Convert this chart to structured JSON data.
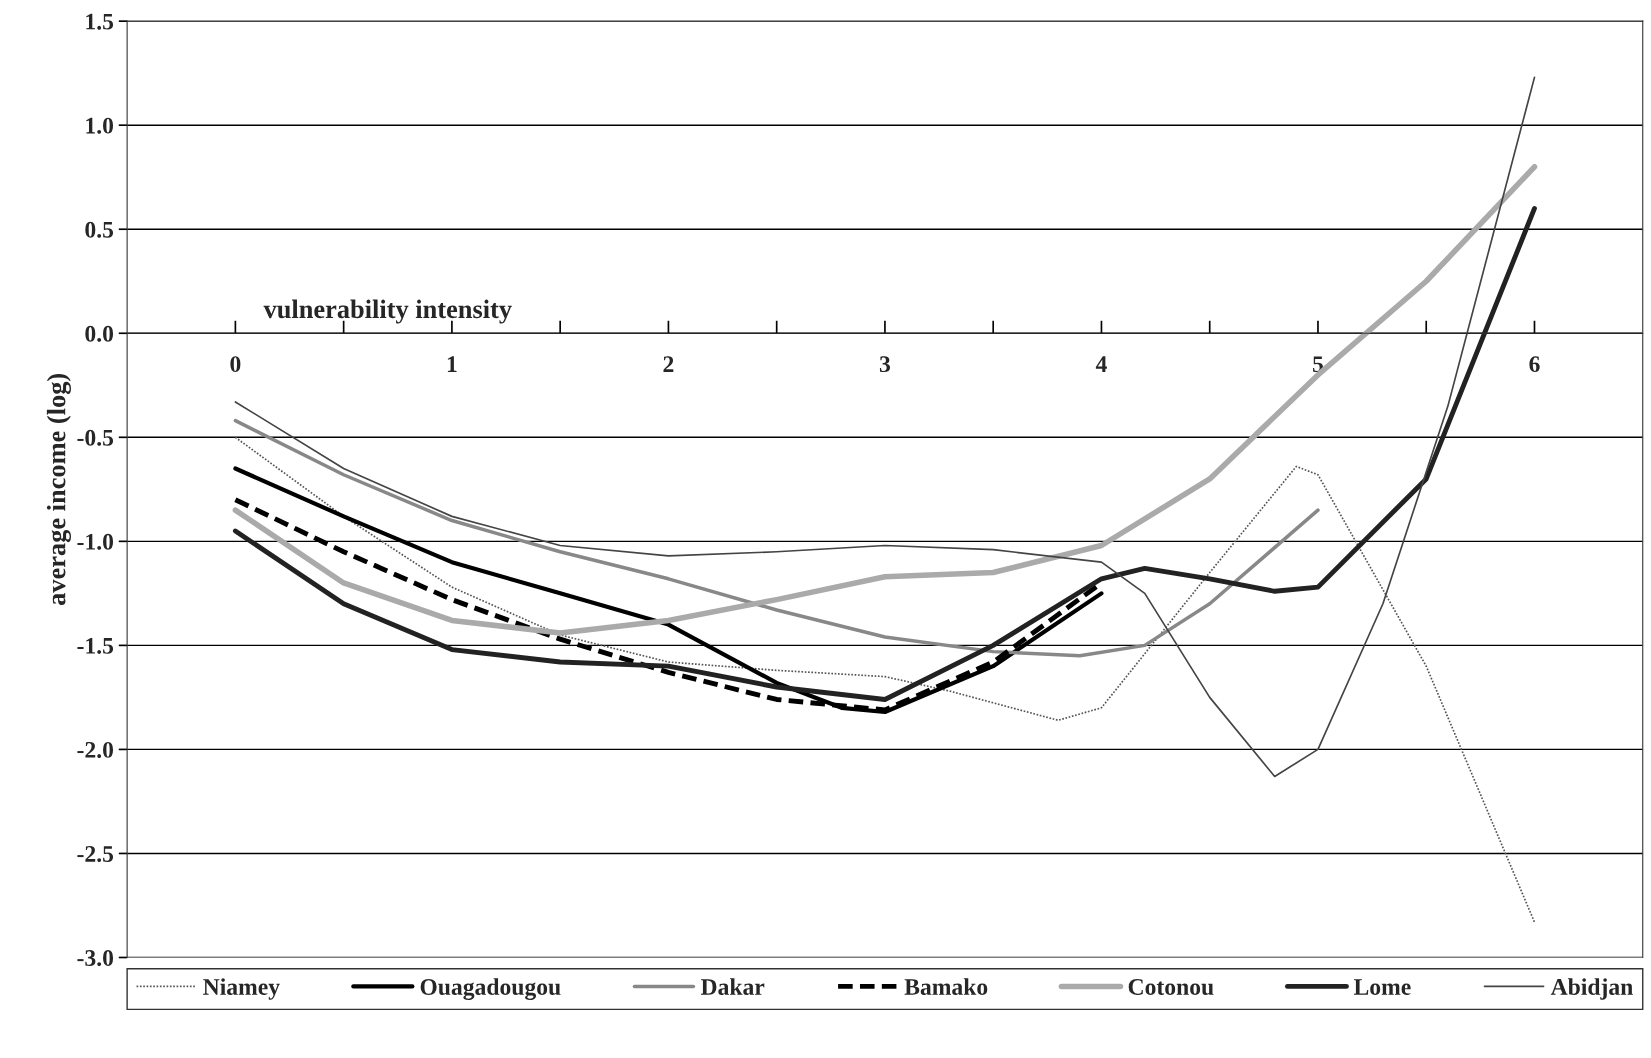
{
  "chart_data": {
    "type": "line",
    "xlabel": "vulnerability intensity",
    "ylabel": "average income (log)",
    "xlim": [
      -0.5,
      6.5
    ],
    "ylim": [
      -3.0,
      1.5
    ],
    "xticks": [
      0,
      {
        "value": 0.5,
        "label": null
      },
      1,
      {
        "value": 1.5,
        "label": null
      },
      2,
      {
        "value": 2.5,
        "label": null
      },
      3,
      {
        "value": 3.5,
        "label": null
      },
      4,
      {
        "value": 4.5,
        "label": null
      },
      5,
      {
        "value": 5.5,
        "label": null
      },
      6
    ],
    "yticks": [
      {
        "value": -3,
        "label": "-3.0"
      },
      -2.5,
      {
        "value": -2,
        "label": "-2.0"
      },
      -1.5,
      {
        "value": -1,
        "label": "-1.0"
      },
      -0.5,
      {
        "value": 0,
        "label": "0.0"
      },
      0.5,
      {
        "value": 1,
        "label": "1.0"
      },
      1.5
    ],
    "grid": "y",
    "legend": "bottom",
    "series": [
      {
        "name": "Niamey",
        "color": "#555555",
        "line_style": "dotted",
        "x": [
          0,
          0.5,
          1,
          1.5,
          2,
          2.5,
          3,
          3.3,
          3.8,
          4,
          4.5,
          4.9,
          5,
          5.5,
          6
        ],
        "values": [
          -0.5,
          -0.88,
          -1.22,
          -1.45,
          -1.58,
          -1.62,
          -1.65,
          -1.72,
          -1.86,
          -1.8,
          -1.15,
          -0.64,
          -0.68,
          -1.6,
          -2.83
        ]
      },
      {
        "name": "Ouagadougou",
        "color": "#000000",
        "line_style": "solid",
        "x": [
          0,
          0.5,
          1,
          1.5,
          2,
          2.5,
          2.8,
          3,
          3.5,
          4
        ],
        "values": [
          -0.65,
          -0.88,
          -1.1,
          -1.25,
          -1.4,
          -1.68,
          -1.8,
          -1.82,
          -1.6,
          -1.25
        ]
      },
      {
        "name": "Dakar",
        "color": "#888888",
        "line_style": "solid",
        "x": [
          0,
          0.5,
          1,
          1.5,
          2,
          2.5,
          3,
          3.5,
          3.9,
          4.2,
          4.5,
          5
        ],
        "values": [
          -0.42,
          -0.68,
          -0.9,
          -1.05,
          -1.18,
          -1.33,
          -1.46,
          -1.53,
          -1.55,
          -1.5,
          -1.3,
          -0.85
        ]
      },
      {
        "name": "Bamako",
        "color": "#000000",
        "line_style": "dashed",
        "x": [
          0,
          0.5,
          1,
          1.5,
          2,
          2.5,
          3,
          3.5,
          4
        ],
        "values": [
          -0.8,
          -1.05,
          -1.28,
          -1.47,
          -1.63,
          -1.76,
          -1.81,
          -1.58,
          -1.2
        ]
      },
      {
        "name": "Cotonou",
        "color": "#aaaaaa",
        "line_style": "solid",
        "x": [
          0,
          0.5,
          1,
          1.5,
          2,
          2.5,
          3,
          3.5,
          4,
          4.5,
          5,
          5.5,
          6
        ],
        "values": [
          -0.85,
          -1.2,
          -1.38,
          -1.44,
          -1.38,
          -1.28,
          -1.17,
          -1.15,
          -1.02,
          -0.7,
          -0.2,
          0.25,
          0.8
        ]
      },
      {
        "name": "Lome",
        "color": "#222222",
        "line_style": "solid",
        "x": [
          0,
          0.5,
          1,
          1.5,
          2,
          2.5,
          3,
          3.5,
          4,
          4.2,
          4.5,
          4.8,
          5,
          5.5,
          6
        ],
        "values": [
          -0.95,
          -1.3,
          -1.52,
          -1.58,
          -1.6,
          -1.7,
          -1.76,
          -1.5,
          -1.18,
          -1.13,
          -1.18,
          -1.24,
          -1.22,
          -0.7,
          0.6
        ]
      },
      {
        "name": "Abidjan",
        "color": "#444444",
        "line_style": "solid",
        "x": [
          0,
          0.5,
          1,
          1.5,
          2,
          2.5,
          3,
          3.5,
          4,
          4.2,
          4.5,
          4.8,
          5,
          5.3,
          5.6,
          6
        ],
        "values": [
          -0.33,
          -0.65,
          -0.88,
          -1.02,
          -1.07,
          -1.05,
          -1.02,
          -1.04,
          -1.1,
          -1.25,
          -1.75,
          -2.13,
          -2.0,
          -1.3,
          -0.35,
          1.23
        ]
      }
    ]
  }
}
